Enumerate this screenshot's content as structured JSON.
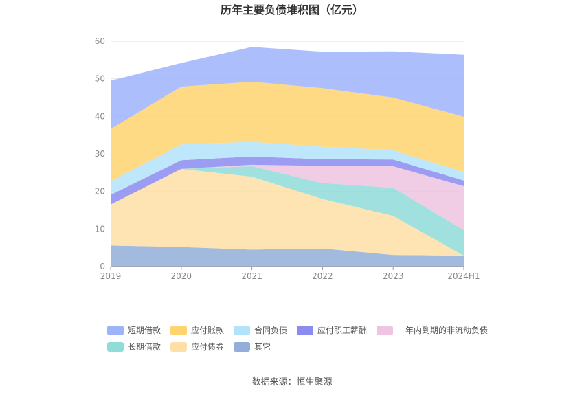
{
  "chart_data": {
    "type": "area",
    "stacked": true,
    "title": "历年主要负债堆积图（亿元）",
    "categories": [
      "2019",
      "2020",
      "2021",
      "2022",
      "2023",
      "2024H1"
    ],
    "ylim": [
      0,
      60
    ],
    "yticks": [
      0,
      10,
      20,
      30,
      40,
      50,
      60
    ],
    "grid": true,
    "legend_position": "bottom",
    "series": [
      {
        "name": "其它",
        "color": "#93aed9",
        "values": [
          5.6,
          5.2,
          4.5,
          4.8,
          3.1,
          2.9
        ]
      },
      {
        "name": "应付债券",
        "color": "#ffdfa6",
        "values": [
          10.9,
          20.8,
          19.4,
          13.2,
          10.4,
          0
        ]
      },
      {
        "name": "长期借款",
        "color": "#8fdcd9",
        "values": [
          0,
          0,
          2.8,
          4.2,
          7.5,
          6.8
        ]
      },
      {
        "name": "一年内到期的非流动负债",
        "color": "#efc4e0",
        "values": [
          0,
          0,
          0.4,
          4.6,
          5.7,
          11.7
        ]
      },
      {
        "name": "应付职工薪酬",
        "color": "#8b8cf0",
        "values": [
          2.6,
          2.3,
          2.2,
          1.8,
          1.8,
          1.5
        ]
      },
      {
        "name": "合同负债",
        "color": "#b3e3fb",
        "values": [
          3.6,
          4.2,
          3.9,
          3.3,
          2.5,
          2.2
        ]
      },
      {
        "name": "应付账款",
        "color": "#ffd36e",
        "values": [
          13.9,
          15.4,
          16.0,
          15.6,
          14.0,
          14.8
        ]
      },
      {
        "name": "短期借款",
        "color": "#9db4fb",
        "values": [
          12.9,
          6.3,
          9.3,
          9.7,
          12.3,
          16.5
        ]
      }
    ],
    "legend_order": [
      "短期借款",
      "应付账款",
      "合同负债",
      "应付职工薪酬",
      "一年内到期的非流动负债",
      "长期借款",
      "应付债券",
      "其它"
    ],
    "source": "数据来源：恒生聚源"
  }
}
